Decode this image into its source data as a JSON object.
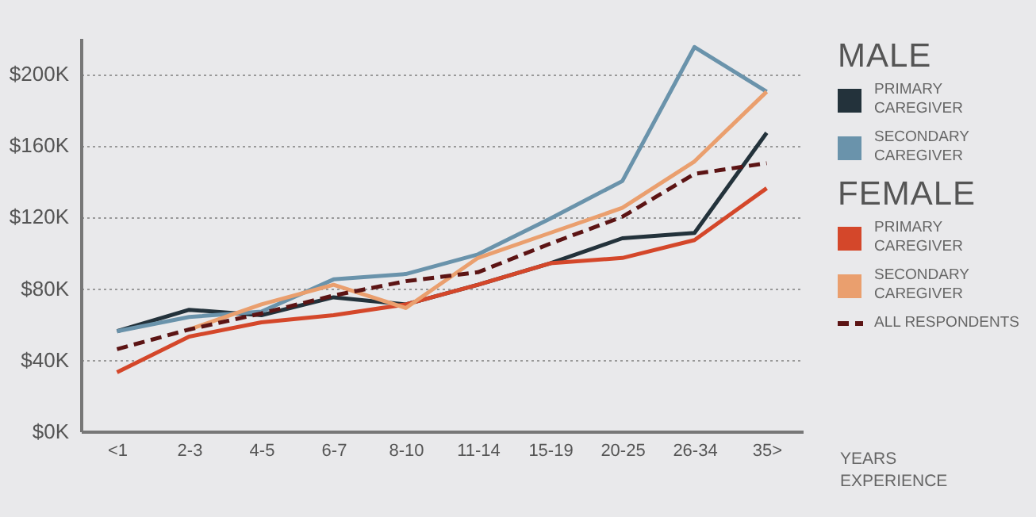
{
  "chart_data": {
    "type": "line",
    "xlabel": "YEARS EXPERIENCE",
    "categories": [
      "<1",
      "2-3",
      "4-5",
      "6-7",
      "8-10",
      "11-14",
      "15-19",
      "20-25",
      "26-34",
      "35>"
    ],
    "ylim": [
      0,
      220
    ],
    "yticks": [
      {
        "value": 0,
        "label": "$0K"
      },
      {
        "value": 40,
        "label": "$40K"
      },
      {
        "value": 80,
        "label": "$80K"
      },
      {
        "value": 120,
        "label": "$120K"
      },
      {
        "value": 160,
        "label": "$160K"
      },
      {
        "value": 200,
        "label": "$200K"
      }
    ],
    "grid": "y",
    "legend": "right",
    "line_style": "solid",
    "marker": "none",
    "annotations": [
      "MALE",
      "FEMALE"
    ],
    "series": [
      {
        "name": "PRIMARY CAREGIVER",
        "color": "#23323b",
        "values": [
          56,
          68,
          65,
          75,
          71,
          82,
          94,
          108,
          111,
          167
        ]
      },
      {
        "name": "SECONDARY CAREGIVER",
        "color": "#6a93ab",
        "values": [
          56,
          64,
          67,
          85,
          88,
          99,
          119,
          140,
          215,
          190
        ]
      },
      {
        "name": "PRIMARY CAREGIVER",
        "color": "#d4472a",
        "values": [
          33,
          53,
          61,
          65,
          71,
          82,
          94,
          97,
          107,
          136
        ]
      },
      {
        "name": "SECONDARY CAREGIVER",
        "color": "#ea9f6e",
        "values": [
          null,
          57,
          71,
          82,
          69,
          97,
          111,
          125,
          151,
          190
        ]
      },
      {
        "name": "ALL RESPONDENTS",
        "color": "#5c1414",
        "line_style": "dashed",
        "values": [
          46,
          57,
          66,
          76,
          84,
          89,
          105,
          120,
          144,
          150
        ]
      }
    ]
  }
}
